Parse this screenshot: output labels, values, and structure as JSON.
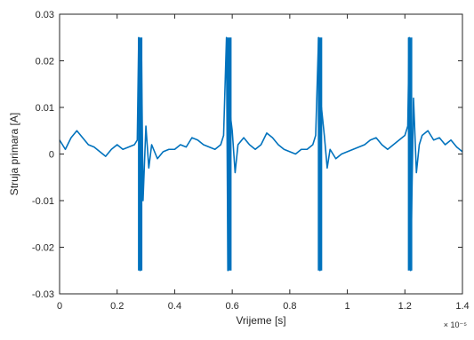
{
  "chart_data": {
    "type": "line",
    "title": "",
    "xlabel": "Vrijeme [s]",
    "ylabel": "Struja primara [A]",
    "x_exponent_label": "× 10⁻⁵",
    "xlim": [
      0,
      1.4
    ],
    "ylim": [
      -0.03,
      0.03
    ],
    "x_ticks": [
      0,
      0.2,
      0.4,
      0.6,
      0.8,
      1,
      1.2,
      1.4
    ],
    "x_tick_labels": [
      "0",
      "0.2",
      "0.4",
      "0.6",
      "0.8",
      "1",
      "1.2",
      "1.4"
    ],
    "y_ticks": [
      -0.03,
      -0.02,
      -0.01,
      0,
      0.01,
      0.02,
      0.03
    ],
    "y_tick_labels": [
      "-0.03",
      "-0.02",
      "-0.01",
      "0",
      "0.01",
      "0.02",
      "0.03"
    ],
    "grid": false,
    "line_color": "#0072BD",
    "series": [
      {
        "values_x": [
          0,
          0.02,
          0.04,
          0.06,
          0.08,
          0.1,
          0.12,
          0.14,
          0.16,
          0.18,
          0.2,
          0.22,
          0.24,
          0.26,
          0.27,
          0.275,
          0.28,
          0.285,
          0.29,
          0.3,
          0.31,
          0.32,
          0.34,
          0.36,
          0.38,
          0.4,
          0.42,
          0.44,
          0.46,
          0.48,
          0.5,
          0.52,
          0.54,
          0.56,
          0.57,
          0.58,
          0.585,
          0.59,
          0.6,
          0.61,
          0.62,
          0.64,
          0.66,
          0.68,
          0.7,
          0.72,
          0.74,
          0.76,
          0.78,
          0.8,
          0.82,
          0.84,
          0.86,
          0.88,
          0.89,
          0.9,
          0.905,
          0.91,
          0.92,
          0.93,
          0.94,
          0.96,
          0.98,
          1.0,
          1.02,
          1.04,
          1.06,
          1.08,
          1.1,
          1.12,
          1.14,
          1.16,
          1.18,
          1.2,
          1.21,
          1.215,
          1.22,
          1.23,
          1.24,
          1.25,
          1.26,
          1.28,
          1.3,
          1.32,
          1.34,
          1.36,
          1.38,
          1.4
        ],
        "values_y": [
          0.003,
          0.001,
          0.0035,
          0.005,
          0.0035,
          0.002,
          0.0015,
          0.0005,
          -0.0005,
          0.001,
          0.002,
          0.001,
          0.0015,
          0.002,
          0.003,
          0.025,
          -0.025,
          0.02,
          -0.01,
          0.006,
          -0.003,
          0.002,
          -0.001,
          0.0005,
          0.001,
          0.001,
          0.002,
          0.0015,
          0.0035,
          0.003,
          0.002,
          0.0015,
          0.001,
          0.002,
          0.004,
          0.025,
          -0.025,
          0.01,
          0.005,
          -0.004,
          0.002,
          0.0035,
          0.002,
          0.001,
          0.002,
          0.0045,
          0.0035,
          0.002,
          0.001,
          0.0005,
          0.0,
          0.001,
          0.001,
          0.002,
          0.004,
          0.025,
          -0.025,
          0.01,
          0.004,
          -0.003,
          0.001,
          -0.001,
          0.0,
          0.0005,
          0.001,
          0.0015,
          0.002,
          0.003,
          0.0035,
          0.002,
          0.001,
          0.002,
          0.003,
          0.004,
          0.006,
          0.025,
          -0.025,
          0.012,
          -0.004,
          0.002,
          0.004,
          0.005,
          0.003,
          0.0035,
          0.002,
          0.003,
          0.0015,
          0.0005
        ]
      }
    ],
    "spikes_x": [
      0.28,
      0.59,
      0.905,
      1.218
    ],
    "spike_range": [
      -0.025,
      0.025
    ]
  }
}
